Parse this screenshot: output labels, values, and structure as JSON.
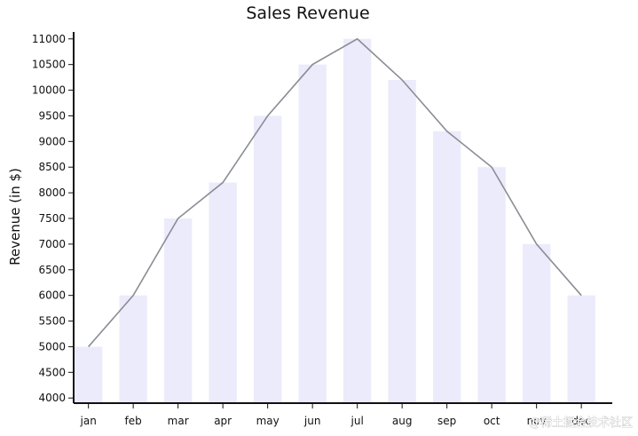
{
  "chart_data": {
    "type": "bar",
    "title": "Sales Revenue",
    "xlabel": "",
    "ylabel": "Revenue (in $)",
    "categories": [
      "jan",
      "feb",
      "mar",
      "apr",
      "may",
      "jun",
      "jul",
      "aug",
      "sep",
      "oct",
      "nov",
      "dec"
    ],
    "values": [
      5000,
      6000,
      7500,
      8200,
      9500,
      10500,
      11000,
      10200,
      9200,
      8500,
      7000,
      6000
    ],
    "line_values": [
      5000,
      6000,
      7500,
      8200,
      9500,
      10500,
      11000,
      10200,
      9200,
      8500,
      7000,
      6000
    ],
    "ylim": [
      3900,
      11100
    ],
    "yticks": [
      4000,
      4500,
      5000,
      5500,
      6000,
      6500,
      7000,
      7500,
      8000,
      8500,
      9000,
      9500,
      10000,
      10500,
      11000
    ],
    "grid": false,
    "bar_color": "#ebebfb",
    "line_color": "#8a8d94"
  },
  "watermark": "@稀土掘金技术社区"
}
